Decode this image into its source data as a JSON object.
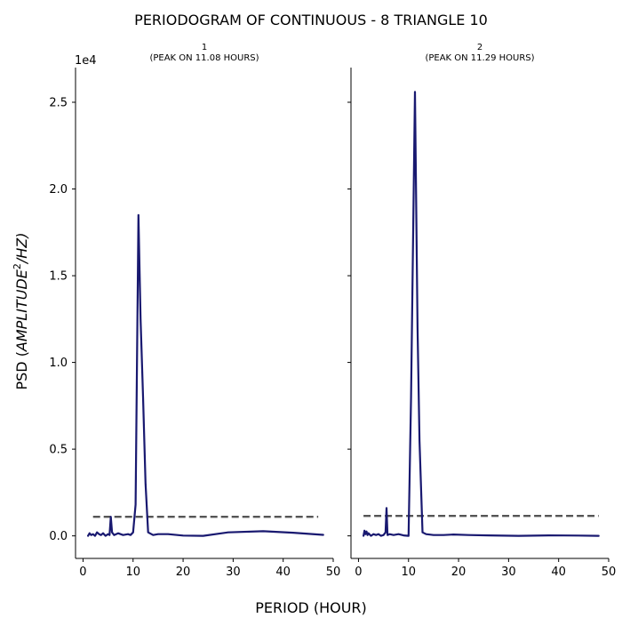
{
  "chart_data": {
    "type": "line",
    "title": "PERIODOGRAM OF CONTINUOUS - 8 TRIANGLE 10",
    "xlabel": "PERIOD (HOUR)",
    "ylabel_prefix": "PSD (",
    "ylabel_math": "AMPLITUDE",
    "ylabel_sup": "2",
    "ylabel_suffix": "/HZ)",
    "y_offset_label": "1e4",
    "sharey": true,
    "ylim": [
      -1300,
      27000
    ],
    "xlim": [
      -1.5,
      50
    ],
    "x_ticks": [
      0,
      10,
      20,
      30,
      40,
      50
    ],
    "x_tick_labels": [
      "0",
      "10",
      "20",
      "30",
      "40",
      "50"
    ],
    "y_ticks": [
      0,
      5000,
      10000,
      15000,
      20000,
      25000
    ],
    "y_tick_labels": [
      "0.0",
      "0.5",
      "1.0",
      "1.5",
      "2.0",
      "2.5"
    ],
    "line_color": "#191970",
    "threshold_color": "#555555",
    "panels": [
      {
        "title_line1": "1",
        "title_line2": "(PEAK ON 11.08 HOURS)",
        "series": {
          "x": [
            1.0,
            1.3,
            1.6,
            2.0,
            2.4,
            2.8,
            3.2,
            3.6,
            4.0,
            4.5,
            5.0,
            5.3,
            5.55,
            5.8,
            6.2,
            7.0,
            8.0,
            9.0,
            9.5,
            10.0,
            10.5,
            11.08,
            11.5,
            12.0,
            12.5,
            13.0,
            14.0,
            15.0,
            17.0,
            20.0,
            24.0,
            29.0,
            36.0,
            42.0,
            48.0
          ],
          "y": [
            0,
            150,
            50,
            100,
            0,
            200,
            100,
            50,
            150,
            0,
            100,
            50,
            1100,
            200,
            50,
            150,
            50,
            100,
            50,
            200,
            1800,
            18500,
            12500,
            8000,
            3000,
            200,
            50,
            100,
            100,
            20,
            0,
            200,
            270,
            180,
            60
          ]
        },
        "threshold": {
          "x": [
            2.0,
            47.0
          ],
          "y": [
            1100,
            1100
          ]
        }
      },
      {
        "title_line1": "2",
        "title_line2": "(PEAK ON 11.29 HOURS)",
        "series": {
          "x": [
            1.0,
            1.2,
            1.4,
            1.6,
            1.8,
            2.0,
            2.5,
            3.0,
            3.5,
            4.0,
            4.5,
            5.0,
            5.4,
            5.6,
            5.8,
            6.2,
            7.0,
            8.0,
            9.0,
            10.0,
            10.5,
            11.29,
            11.8,
            12.2,
            12.8,
            13.5,
            15.0,
            17.0,
            19.0,
            22.0,
            26.0,
            32.0,
            38.0,
            44.0,
            48.0
          ],
          "y": [
            0,
            300,
            100,
            250,
            50,
            150,
            0,
            100,
            50,
            100,
            0,
            50,
            200,
            1600,
            50,
            100,
            50,
            100,
            30,
            0,
            8000,
            25600,
            12000,
            5500,
            200,
            100,
            50,
            50,
            80,
            50,
            30,
            0,
            30,
            20,
            0
          ]
        },
        "threshold": {
          "x": [
            1.0,
            48.0
          ],
          "y": [
            1150,
            1150
          ]
        }
      }
    ]
  }
}
